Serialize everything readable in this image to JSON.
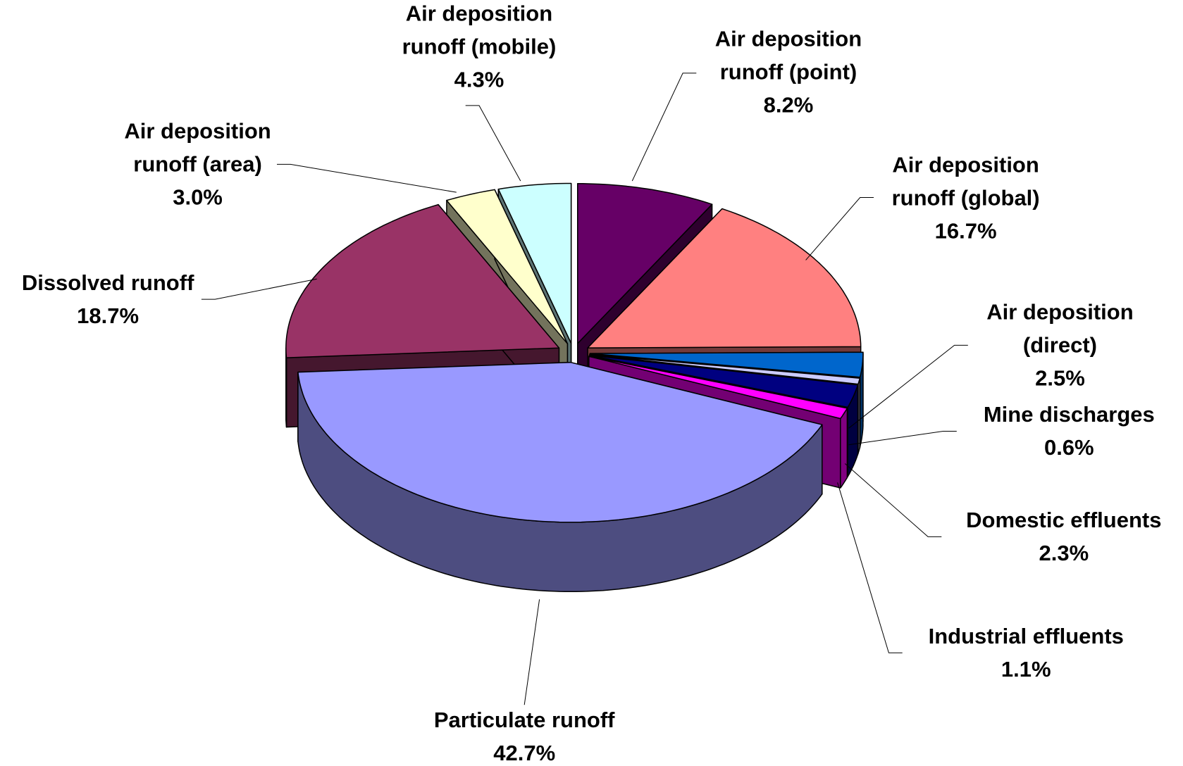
{
  "chart_data": {
    "type": "pie3d",
    "categories": [
      "Air deposition runoff (point)",
      "Air deposition runoff (global)",
      "Air deposition (direct)",
      "Mine discharges",
      "Domestic effluents",
      "Industrial effluents",
      "Particulate runoff",
      "Dissolved runoff",
      "Air deposition runoff (area)",
      "Air deposition runoff (mobile)"
    ],
    "values": [
      8.2,
      16.7,
      2.5,
      0.6,
      2.3,
      1.1,
      42.7,
      18.7,
      3.0,
      4.3
    ],
    "value_labels": [
      "8.2%",
      "16.7%",
      "2.5%",
      "0.6%",
      "2.3%",
      "1.1%",
      "42.7%",
      "18.7%",
      "3.0%",
      "4.3%"
    ],
    "colors": [
      "#660066",
      "#ff8080",
      "#0066cc",
      "#ccccff",
      "#000080",
      "#ff00ff",
      "#9999ff",
      "#993366",
      "#ffffcc",
      "#ccffff"
    ]
  }
}
